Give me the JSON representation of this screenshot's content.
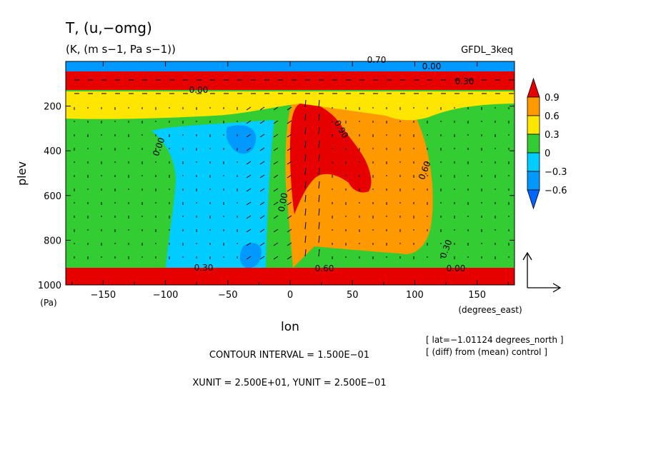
{
  "chart_data": {
    "type": "heatmap",
    "title": "T, (u,−omg)",
    "subtitle": "(K, (m s−1, Pa s−1))",
    "model": "GFDL_3keq",
    "xlabel": "lon",
    "xunit": "(degrees_east)",
    "ylabel": "plev",
    "yunit": "(Pa)",
    "xlim": [
      -180,
      180
    ],
    "ylim": [
      1000,
      0
    ],
    "x_ticks": [
      -150,
      -100,
      -50,
      0,
      50,
      100,
      150
    ],
    "x_tick_labels": [
      "−150",
      "−100",
      "−50",
      "0",
      "50",
      "100",
      "150"
    ],
    "y_ticks": [
      200,
      400,
      600,
      800,
      1000
    ],
    "y_tick_labels": [
      "200",
      "400",
      "600",
      "800",
      "1000"
    ],
    "colorbar": {
      "levels": [
        "0.9",
        "0.6",
        "0.3",
        "0",
        "−0.3",
        "−0.6"
      ],
      "colors": [
        "#e60000",
        "#ff9900",
        "#ffe600",
        "#33cc33",
        "#00ccff",
        "#0099ff",
        "#0066ff"
      ]
    },
    "regions": [
      {
        "name": "west-plateau",
        "value": 0.15,
        "color": "#33cc33"
      },
      {
        "name": "west-cool-block",
        "value": -0.2,
        "color": "#00ccff"
      },
      {
        "name": "west-cool-core-upper",
        "value": -0.35,
        "color": "#0099ff"
      },
      {
        "name": "west-cool-core-lower",
        "value": -0.35,
        "color": "#0099ff"
      },
      {
        "name": "east-warm-block",
        "value": 0.5,
        "color": "#ff9900"
      },
      {
        "name": "east-warm-core",
        "value": 0.95,
        "color": "#e60000"
      },
      {
        "name": "east-plateau",
        "value": 0.15,
        "color": "#33cc33"
      },
      {
        "name": "upper-warm-band",
        "value": 0.4,
        "color": "#ffe600"
      },
      {
        "name": "upper-hot-band",
        "value": 0.9,
        "color": "#e60000"
      },
      {
        "name": "surface-layer",
        "value": 1.0,
        "color": "#e60000"
      }
    ],
    "contour_labels": [
      "0.00",
      "0.00",
      "0.90",
      "0.60",
      "0.30",
      "0.60",
      "0.30",
      "0.00",
      "0.70",
      "0.30",
      "0.00",
      "0.00"
    ],
    "vector_reference": {
      "xunit_label": "XUNIT = 2.500E+01",
      "yunit_label": "YUNIT = 2.500E−01"
    },
    "contour_interval": "CONTOUR INTERVAL = 1.500E−01",
    "lat_note": "[ lat=−1.01124 degrees_north ]",
    "diff_note": "[ (diff) from (mean) control ]",
    "grid": false
  }
}
